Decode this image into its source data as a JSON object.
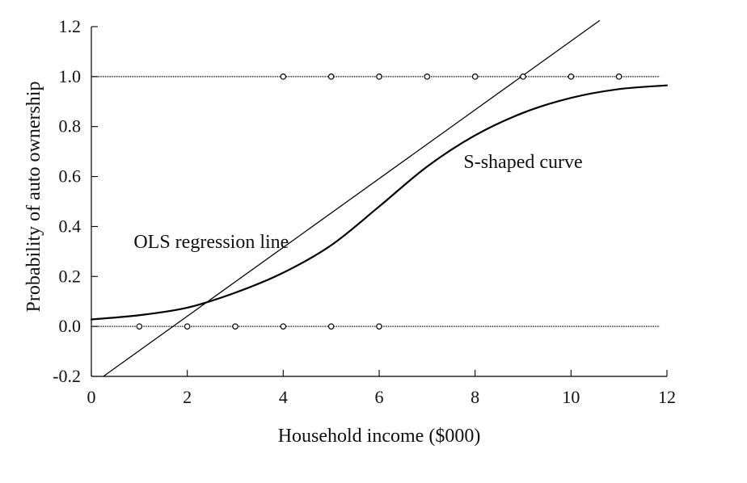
{
  "chart_data": {
    "type": "line",
    "title": "",
    "xlabel": "Household income ($000)",
    "ylabel": "Probability of  auto ownership",
    "xlim": [
      0,
      12
    ],
    "ylim": [
      -0.2,
      1.2
    ],
    "x_ticks": [
      0,
      2,
      4,
      6,
      8,
      10,
      12
    ],
    "x_tick_labels": [
      "0",
      "2",
      "4",
      "6",
      "8",
      "10",
      "12"
    ],
    "y_ticks": [
      -0.2,
      0.0,
      0.2,
      0.4,
      0.6,
      0.8,
      1.0,
      1.2
    ],
    "y_tick_labels": [
      "-0.2",
      "0.0",
      "0.2",
      "0.4",
      "0.6",
      "0.8",
      "1.0",
      "1.2"
    ],
    "grid": false,
    "legend": "none",
    "reference_lines": [
      {
        "y": 0.0,
        "x_range": [
          0,
          11.85
        ],
        "style": "dotted"
      },
      {
        "y": 1.0,
        "x_range": [
          0,
          11.85
        ],
        "style": "dotted"
      }
    ],
    "observations": [
      {
        "x": 1.0,
        "y": 0
      },
      {
        "x": 2.0,
        "y": 0
      },
      {
        "x": 3.0,
        "y": 0
      },
      {
        "x": 4.0,
        "y": 0
      },
      {
        "x": 5.0,
        "y": 0
      },
      {
        "x": 6.0,
        "y": 0
      },
      {
        "x": 4.0,
        "y": 1
      },
      {
        "x": 5.0,
        "y": 1
      },
      {
        "x": 6.0,
        "y": 1
      },
      {
        "x": 7.0,
        "y": 1
      },
      {
        "x": 8.0,
        "y": 1
      },
      {
        "x": 9.0,
        "y": 1
      },
      {
        "x": 10.0,
        "y": 1
      },
      {
        "x": 11.0,
        "y": 1
      }
    ],
    "series": [
      {
        "kind": "line",
        "label": "OLS regression line",
        "points": [
          {
            "x": 0.25,
            "y": -0.2
          },
          {
            "x": 10.6,
            "y": 1.225
          }
        ]
      },
      {
        "kind": "curve",
        "label": "S-shaped curve",
        "points": [
          {
            "x": 0.0,
            "y": 0.028
          },
          {
            "x": 1.0,
            "y": 0.045
          },
          {
            "x": 2.0,
            "y": 0.075
          },
          {
            "x": 3.0,
            "y": 0.135
          },
          {
            "x": 4.0,
            "y": 0.215
          },
          {
            "x": 5.0,
            "y": 0.325
          },
          {
            "x": 6.0,
            "y": 0.48
          },
          {
            "x": 7.0,
            "y": 0.64
          },
          {
            "x": 8.0,
            "y": 0.765
          },
          {
            "x": 9.0,
            "y": 0.855
          },
          {
            "x": 10.0,
            "y": 0.915
          },
          {
            "x": 11.0,
            "y": 0.95
          },
          {
            "x": 12.0,
            "y": 0.965
          }
        ]
      }
    ],
    "annotations": [
      {
        "text": "OLS regression line",
        "x": 2.5,
        "y": 0.34
      },
      {
        "text": "S-shaped curve",
        "x": 9.0,
        "y": 0.66
      }
    ]
  }
}
